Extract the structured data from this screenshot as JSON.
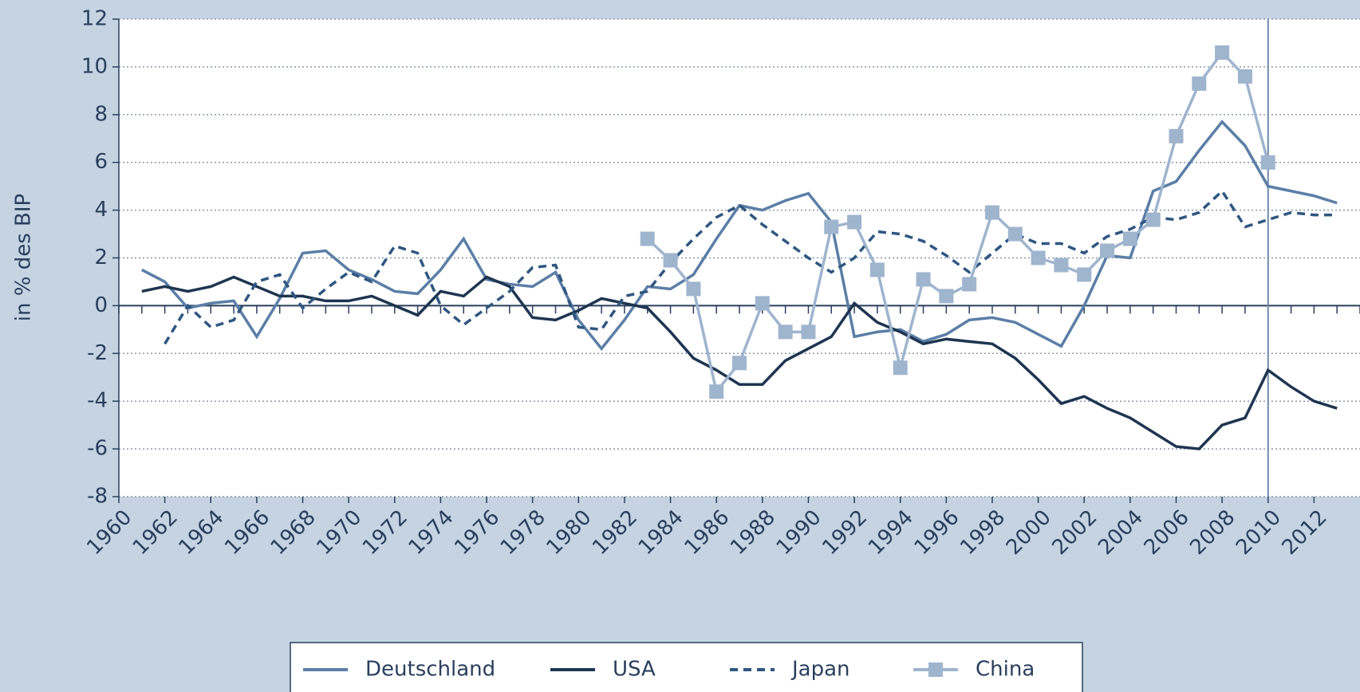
{
  "chart_data": {
    "type": "line",
    "y_label": "in % des BIP",
    "xlim": [
      1960,
      2014
    ],
    "xticks": [
      1960,
      1962,
      1964,
      1966,
      1968,
      1970,
      1972,
      1974,
      1976,
      1978,
      1980,
      1982,
      1984,
      1986,
      1988,
      1990,
      1992,
      1994,
      1996,
      1998,
      2000,
      2002,
      2004,
      2006,
      2008,
      2010,
      2012
    ],
    "ylim": [
      -8,
      12
    ],
    "yticks": [
      -8,
      -6,
      -4,
      -2,
      0,
      2,
      4,
      6,
      8,
      10,
      12
    ],
    "grid": true,
    "vertical_line": 2010,
    "legend": "bottom",
    "series": [
      {
        "name": "Deutschland",
        "color": "#5b7ea6",
        "style": "solid",
        "marker": "none",
        "x": [
          1961,
          1962,
          1963,
          1964,
          1965,
          1966,
          1967,
          1968,
          1969,
          1970,
          1971,
          1972,
          1973,
          1974,
          1975,
          1976,
          1977,
          1978,
          1979,
          1980,
          1981,
          1982,
          1983,
          1984,
          1985,
          1986,
          1987,
          1988,
          1989,
          1990,
          1991,
          1992,
          1993,
          1994,
          1995,
          1996,
          1997,
          1998,
          1999,
          2000,
          2001,
          2002,
          2003,
          2004,
          2005,
          2006,
          2007,
          2008,
          2009,
          2010,
          2011,
          2012,
          2013
        ],
        "values": [
          1.5,
          1.0,
          -0.1,
          0.1,
          0.2,
          -1.3,
          0.3,
          2.2,
          2.3,
          1.5,
          1.1,
          0.6,
          0.5,
          1.5,
          2.8,
          1.1,
          0.9,
          0.8,
          1.4,
          -0.6,
          -1.8,
          -0.6,
          0.8,
          0.7,
          1.3,
          2.8,
          4.2,
          4.0,
          4.4,
          4.7,
          3.5,
          -1.3,
          -1.1,
          -1.0,
          -1.5,
          -1.2,
          -0.6,
          -0.5,
          -0.7,
          -1.2,
          -1.7,
          0.0,
          2.1,
          2.0,
          4.8,
          5.2,
          6.5,
          7.7,
          6.7,
          5.0,
          4.8,
          4.6,
          4.3
        ]
      },
      {
        "name": "USA",
        "color": "#1e3550",
        "style": "solid",
        "marker": "none",
        "x": [
          1961,
          1962,
          1963,
          1964,
          1965,
          1966,
          1967,
          1968,
          1969,
          1970,
          1971,
          1972,
          1973,
          1974,
          1975,
          1976,
          1977,
          1978,
          1979,
          1980,
          1981,
          1982,
          1983,
          1984,
          1985,
          1986,
          1987,
          1988,
          1989,
          1990,
          1991,
          1992,
          1993,
          1994,
          1995,
          1996,
          1997,
          1998,
          1999,
          2000,
          2001,
          2002,
          2003,
          2004,
          2005,
          2006,
          2007,
          2008,
          2009,
          2010,
          2011,
          2012,
          2013
        ],
        "values": [
          0.6,
          0.8,
          0.6,
          0.8,
          1.2,
          0.8,
          0.4,
          0.4,
          0.2,
          0.2,
          0.4,
          0.0,
          -0.4,
          0.6,
          0.4,
          1.2,
          0.8,
          -0.5,
          -0.6,
          -0.2,
          0.3,
          0.1,
          -0.1,
          -1.1,
          -2.2,
          -2.7,
          -3.3,
          -3.3,
          -2.3,
          -1.8,
          -1.3,
          0.1,
          -0.7,
          -1.1,
          -1.6,
          -1.4,
          -1.5,
          -1.6,
          -2.2,
          -3.1,
          -4.1,
          -3.8,
          -4.3,
          -4.7,
          -5.3,
          -5.9,
          -6.0,
          -5.0,
          -4.7,
          -2.7,
          -3.4,
          -4.0,
          -4.3
        ]
      },
      {
        "name": "Japan",
        "color": "#2f5680",
        "style": "dashed",
        "marker": "none",
        "x": [
          1962,
          1963,
          1964,
          1965,
          1966,
          1967,
          1968,
          1969,
          1970,
          1971,
          1972,
          1973,
          1974,
          1975,
          1976,
          1977,
          1978,
          1979,
          1980,
          1981,
          1982,
          1983,
          1984,
          1985,
          1986,
          1987,
          1988,
          1989,
          1990,
          1991,
          1992,
          1993,
          1994,
          1995,
          1996,
          1997,
          1998,
          1999,
          2000,
          2001,
          2002,
          2003,
          2004,
          2005,
          2006,
          2007,
          2008,
          2009,
          2010,
          2011,
          2012,
          2013
        ],
        "values": [
          -1.6,
          0.0,
          -0.9,
          -0.6,
          1.0,
          1.3,
          -0.1,
          0.7,
          1.4,
          1.0,
          2.5,
          2.2,
          0.0,
          -0.8,
          -0.1,
          0.6,
          1.6,
          1.7,
          -0.9,
          -1.0,
          0.4,
          0.6,
          1.8,
          2.8,
          3.7,
          4.2,
          3.4,
          2.7,
          2.0,
          1.4,
          2.0,
          3.1,
          3.0,
          2.7,
          2.1,
          1.4,
          2.2,
          3.0,
          2.6,
          2.6,
          2.2,
          2.9,
          3.2,
          3.7,
          3.6,
          3.9,
          4.8,
          3.3,
          3.6,
          3.9,
          3.8,
          3.8
        ]
      },
      {
        "name": "China",
        "color": "#9fb4cd",
        "style": "solid",
        "marker": "square",
        "x": [
          1983,
          1984,
          1985,
          1986,
          1987,
          1988,
          1989,
          1990,
          1991,
          1992,
          1993,
          1994,
          1995,
          1996,
          1997,
          1998,
          1999,
          2000,
          2001,
          2002,
          2003,
          2004,
          2005,
          2006,
          2007,
          2008,
          2009,
          2010
        ],
        "values": [
          2.8,
          1.9,
          0.7,
          -3.6,
          -2.4,
          0.1,
          -1.1,
          -1.1,
          3.3,
          3.5,
          1.5,
          -2.6,
          1.1,
          0.4,
          0.9,
          3.9,
          3.0,
          2.0,
          1.7,
          1.3,
          2.3,
          2.8,
          3.6,
          7.1,
          9.3,
          10.6,
          9.6,
          6.0
        ]
      }
    ]
  }
}
